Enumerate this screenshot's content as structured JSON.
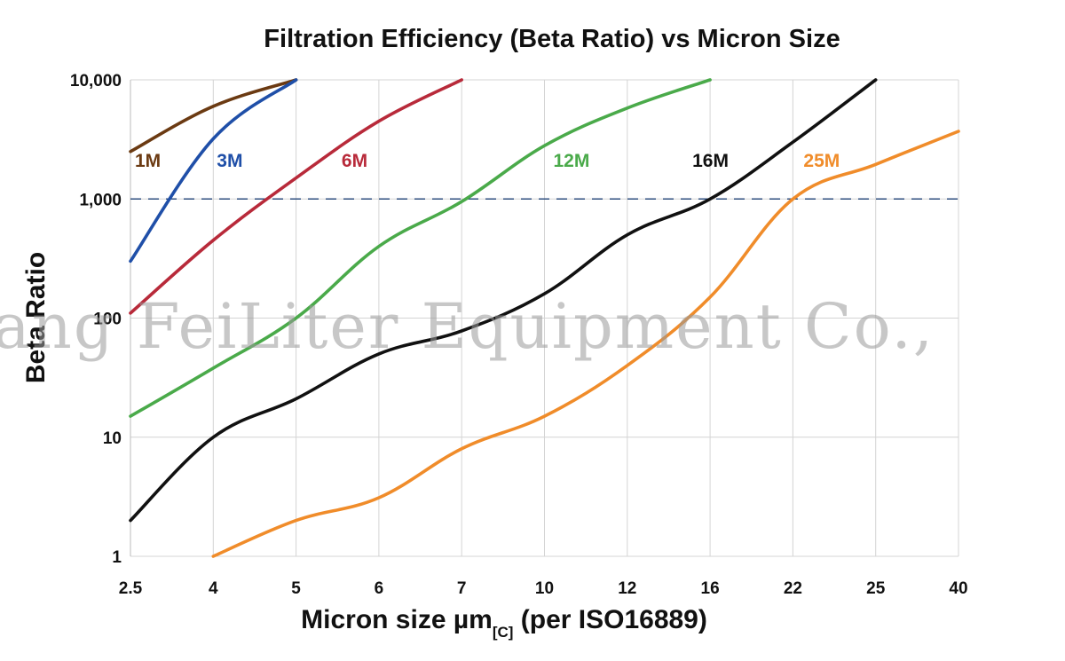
{
  "watermark": "ang FeiLiter Equipment Co.,",
  "chart_data": {
    "type": "line",
    "title": "Filtration Efficiency (Beta Ratio) vs Micron Size",
    "xlabel_main": "Micron size µm",
    "xlabel_sub": "[C]",
    "xlabel_tail": " (per ISO16889)",
    "ylabel": "Beta Ratio",
    "y_scale": "log",
    "ylim": [
      1,
      10000
    ],
    "y_ticks": [
      {
        "value": 1,
        "label": "1"
      },
      {
        "value": 10,
        "label": "10"
      },
      {
        "value": 100,
        "label": "100"
      },
      {
        "value": 1000,
        "label": "1,000"
      },
      {
        "value": 10000,
        "label": "10,000"
      }
    ],
    "categories": [
      "2.5",
      "4",
      "5",
      "6",
      "7",
      "10",
      "12",
      "16",
      "22",
      "25",
      "40"
    ],
    "grid": true,
    "reference_line": {
      "value": 1000,
      "style": "dashed",
      "color": "#2f4f7f"
    },
    "series": [
      {
        "name": "1M",
        "color": "#6b3a12",
        "points": [
          [
            2.5,
            2500
          ],
          [
            4,
            6000
          ],
          [
            5,
            10000
          ]
        ]
      },
      {
        "name": "3M",
        "color": "#1f4fa8",
        "points": [
          [
            2.5,
            300
          ],
          [
            4,
            3200
          ],
          [
            5,
            10000
          ]
        ]
      },
      {
        "name": "6M",
        "color": "#b82a3a",
        "points": [
          [
            2.5,
            110
          ],
          [
            4,
            450
          ],
          [
            5,
            1500
          ],
          [
            6,
            4500
          ],
          [
            7,
            10000
          ]
        ]
      },
      {
        "name": "12M",
        "color": "#4aaa4a",
        "points": [
          [
            2.5,
            15
          ],
          [
            4,
            38
          ],
          [
            5,
            100
          ],
          [
            6,
            400
          ],
          [
            7,
            950
          ],
          [
            10,
            2800
          ],
          [
            12,
            5800
          ],
          [
            16,
            10000
          ]
        ]
      },
      {
        "name": "16M",
        "color": "#111111",
        "points": [
          [
            2.5,
            2
          ],
          [
            4,
            10
          ],
          [
            5,
            21
          ],
          [
            6,
            50
          ],
          [
            7,
            78
          ],
          [
            10,
            160
          ],
          [
            12,
            500
          ],
          [
            16,
            1000
          ],
          [
            22,
            3000
          ],
          [
            25,
            10000
          ]
        ]
      },
      {
        "name": "25M",
        "color": "#f08c2a",
        "points": [
          [
            4,
            1
          ],
          [
            5,
            2
          ],
          [
            6,
            3.1
          ],
          [
            7,
            8
          ],
          [
            10,
            15
          ],
          [
            12,
            40
          ],
          [
            16,
            150
          ],
          [
            22,
            1000
          ],
          [
            25,
            1950
          ],
          [
            40,
            3700
          ]
        ]
      }
    ]
  }
}
